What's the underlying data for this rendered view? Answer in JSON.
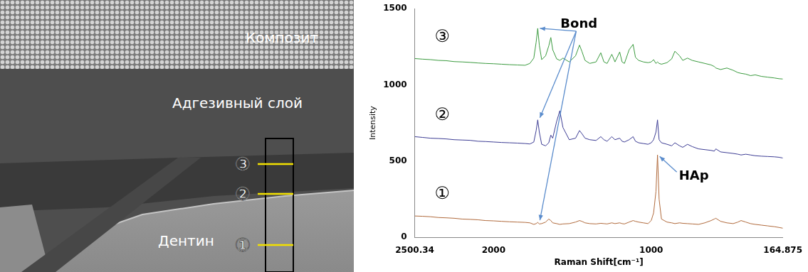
{
  "micrograph": {
    "labels": [
      "Композит",
      "Адгезивный слой",
      "Дентин"
    ],
    "markers": [
      "③",
      "②",
      "①"
    ]
  },
  "chart_data": {
    "type": "line",
    "x_label": "Raman Shift[cm⁻¹]",
    "y_label": "Intensity",
    "x": [
      2500,
      2450,
      2400,
      2350,
      2300,
      2250,
      2200,
      2150,
      2100,
      2050,
      2000,
      1950,
      1900,
      1850,
      1800,
      1770,
      1745,
      1730,
      1720,
      1710,
      1695,
      1670,
      1650,
      1637,
      1625,
      1600,
      1580,
      1560,
      1520,
      1480,
      1455,
      1440,
      1420,
      1390,
      1350,
      1320,
      1300,
      1280,
      1250,
      1230,
      1200,
      1185,
      1170,
      1140,
      1115,
      1100,
      1080,
      1050,
      1020,
      1000,
      985,
      970,
      960,
      950,
      935,
      900,
      870,
      850,
      820,
      800,
      770,
      740,
      700,
      660,
      620,
      600,
      590,
      560,
      520,
      480,
      450,
      430,
      400,
      370,
      340,
      300,
      260,
      220,
      190,
      165
    ],
    "series": [
      {
        "name": "③",
        "color": "#3a9a3e",
        "values": [
          1172,
          1168,
          1165,
          1160,
          1158,
          1152,
          1150,
          1147,
          1143,
          1140,
          1138,
          1135,
          1132,
          1130,
          1128,
          1140,
          1175,
          1280,
          1370,
          1260,
          1165,
          1190,
          1255,
          1310,
          1230,
          1170,
          1160,
          1175,
          1150,
          1190,
          1260,
          1220,
          1160,
          1140,
          1150,
          1210,
          1150,
          1140,
          1200,
          1150,
          1215,
          1150,
          1140,
          1230,
          1265,
          1180,
          1160,
          1150,
          1145,
          1150,
          1165,
          1140,
          1150,
          1140,
          1135,
          1145,
          1170,
          1220,
          1190,
          1160,
          1175,
          1160,
          1150,
          1140,
          1130,
          1120,
          1110,
          1100,
          1110,
          1095,
          1080,
          1075,
          1070,
          1060,
          1065,
          1055,
          1050,
          1045,
          1040,
          1038
        ]
      },
      {
        "name": "②",
        "color": "#3d3d94",
        "values": [
          660,
          655,
          650,
          648,
          645,
          640,
          638,
          636,
          630,
          628,
          625,
          622,
          620,
          618,
          615,
          612,
          625,
          700,
          770,
          690,
          610,
          600,
          620,
          670,
          650,
          760,
          830,
          720,
          640,
          650,
          700,
          680,
          650,
          640,
          635,
          660,
          640,
          630,
          660,
          640,
          650,
          630,
          625,
          640,
          660,
          630,
          620,
          615,
          610,
          620,
          640,
          690,
          770,
          640,
          620,
          610,
          600,
          620,
          600,
          590,
          610,
          595,
          580,
          575,
          570,
          565,
          580,
          560,
          555,
          550,
          545,
          540,
          545,
          540,
          535,
          532,
          530,
          528,
          525,
          520
        ]
      },
      {
        "name": "①",
        "color": "#b06a3c",
        "values": [
          140,
          138,
          135,
          130,
          128,
          125,
          120,
          118,
          115,
          110,
          108,
          105,
          102,
          100,
          98,
          95,
          85,
          90,
          98,
          88,
          90,
          100,
          120,
          110,
          95,
          90,
          85,
          88,
          90,
          100,
          110,
          105,
          95,
          90,
          88,
          92,
          90,
          88,
          95,
          90,
          95,
          90,
          88,
          100,
          110,
          105,
          100,
          95,
          90,
          110,
          160,
          300,
          540,
          250,
          120,
          100,
          95,
          90,
          95,
          92,
          90,
          88,
          85,
          95,
          110,
          120,
          125,
          105,
          95,
          90,
          100,
          110,
          100,
          90,
          85,
          80,
          75,
          70,
          65,
          60
        ]
      }
    ],
    "annotations": [
      {
        "text": "Bond",
        "x": 1720,
        "series": [
          "③",
          "②",
          "①"
        ]
      },
      {
        "text": "HAp",
        "x": 960,
        "series": [
          "①"
        ]
      }
    ],
    "xlim": [
      2500.34,
      164.875
    ],
    "xticks": [
      2500.34,
      2000,
      1000,
      164.875
    ],
    "ylim": [
      0,
      1500
    ],
    "yticks": [
      0,
      500,
      1000,
      1500
    ],
    "grid": false
  }
}
